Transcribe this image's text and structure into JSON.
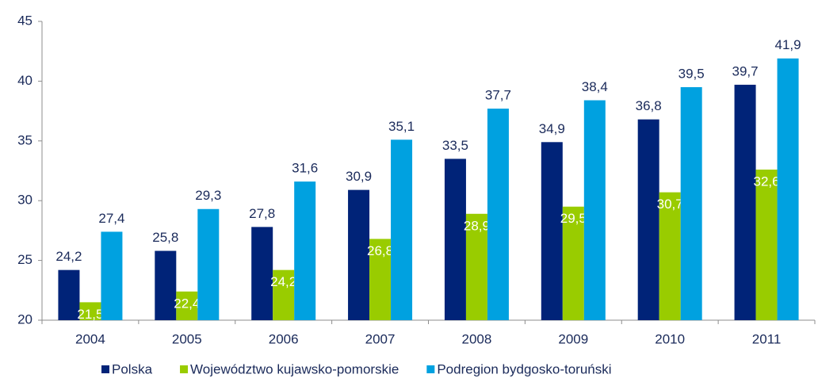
{
  "chart_data": {
    "type": "bar",
    "categories": [
      "2004",
      "2005",
      "2006",
      "2007",
      "2008",
      "2009",
      "2010",
      "2011"
    ],
    "series": [
      {
        "name": "Polska",
        "color": "#002378",
        "values": [
          24.2,
          25.8,
          27.8,
          30.9,
          33.5,
          34.9,
          36.8,
          39.7
        ],
        "value_labels": [
          "24,2",
          "25,8",
          "27,8",
          "30,9",
          "33,5",
          "34,9",
          "36,8",
          "39,7"
        ]
      },
      {
        "name": "Województwo kujawsko-pomorskie",
        "color": "#99cc00",
        "values": [
          21.5,
          22.4,
          24.2,
          26.8,
          28.9,
          29.5,
          30.7,
          32.6
        ],
        "value_labels": [
          "21,5",
          "22,4",
          "24,2",
          "26,8",
          "28,9",
          "29,5",
          "30,7",
          "32,6"
        ]
      },
      {
        "name": "Podregion bydgosko-toruński",
        "color": "#00a1e0",
        "values": [
          27.4,
          29.3,
          31.6,
          35.1,
          37.7,
          38.4,
          39.5,
          41.9
        ],
        "value_labels": [
          "27,4",
          "29,3",
          "31,6",
          "35,1",
          "37,7",
          "38,4",
          "39,5",
          "41,9"
        ]
      }
    ],
    "ylim": [
      20,
      45
    ],
    "yticks": [
      20,
      25,
      30,
      35,
      40,
      45
    ]
  }
}
